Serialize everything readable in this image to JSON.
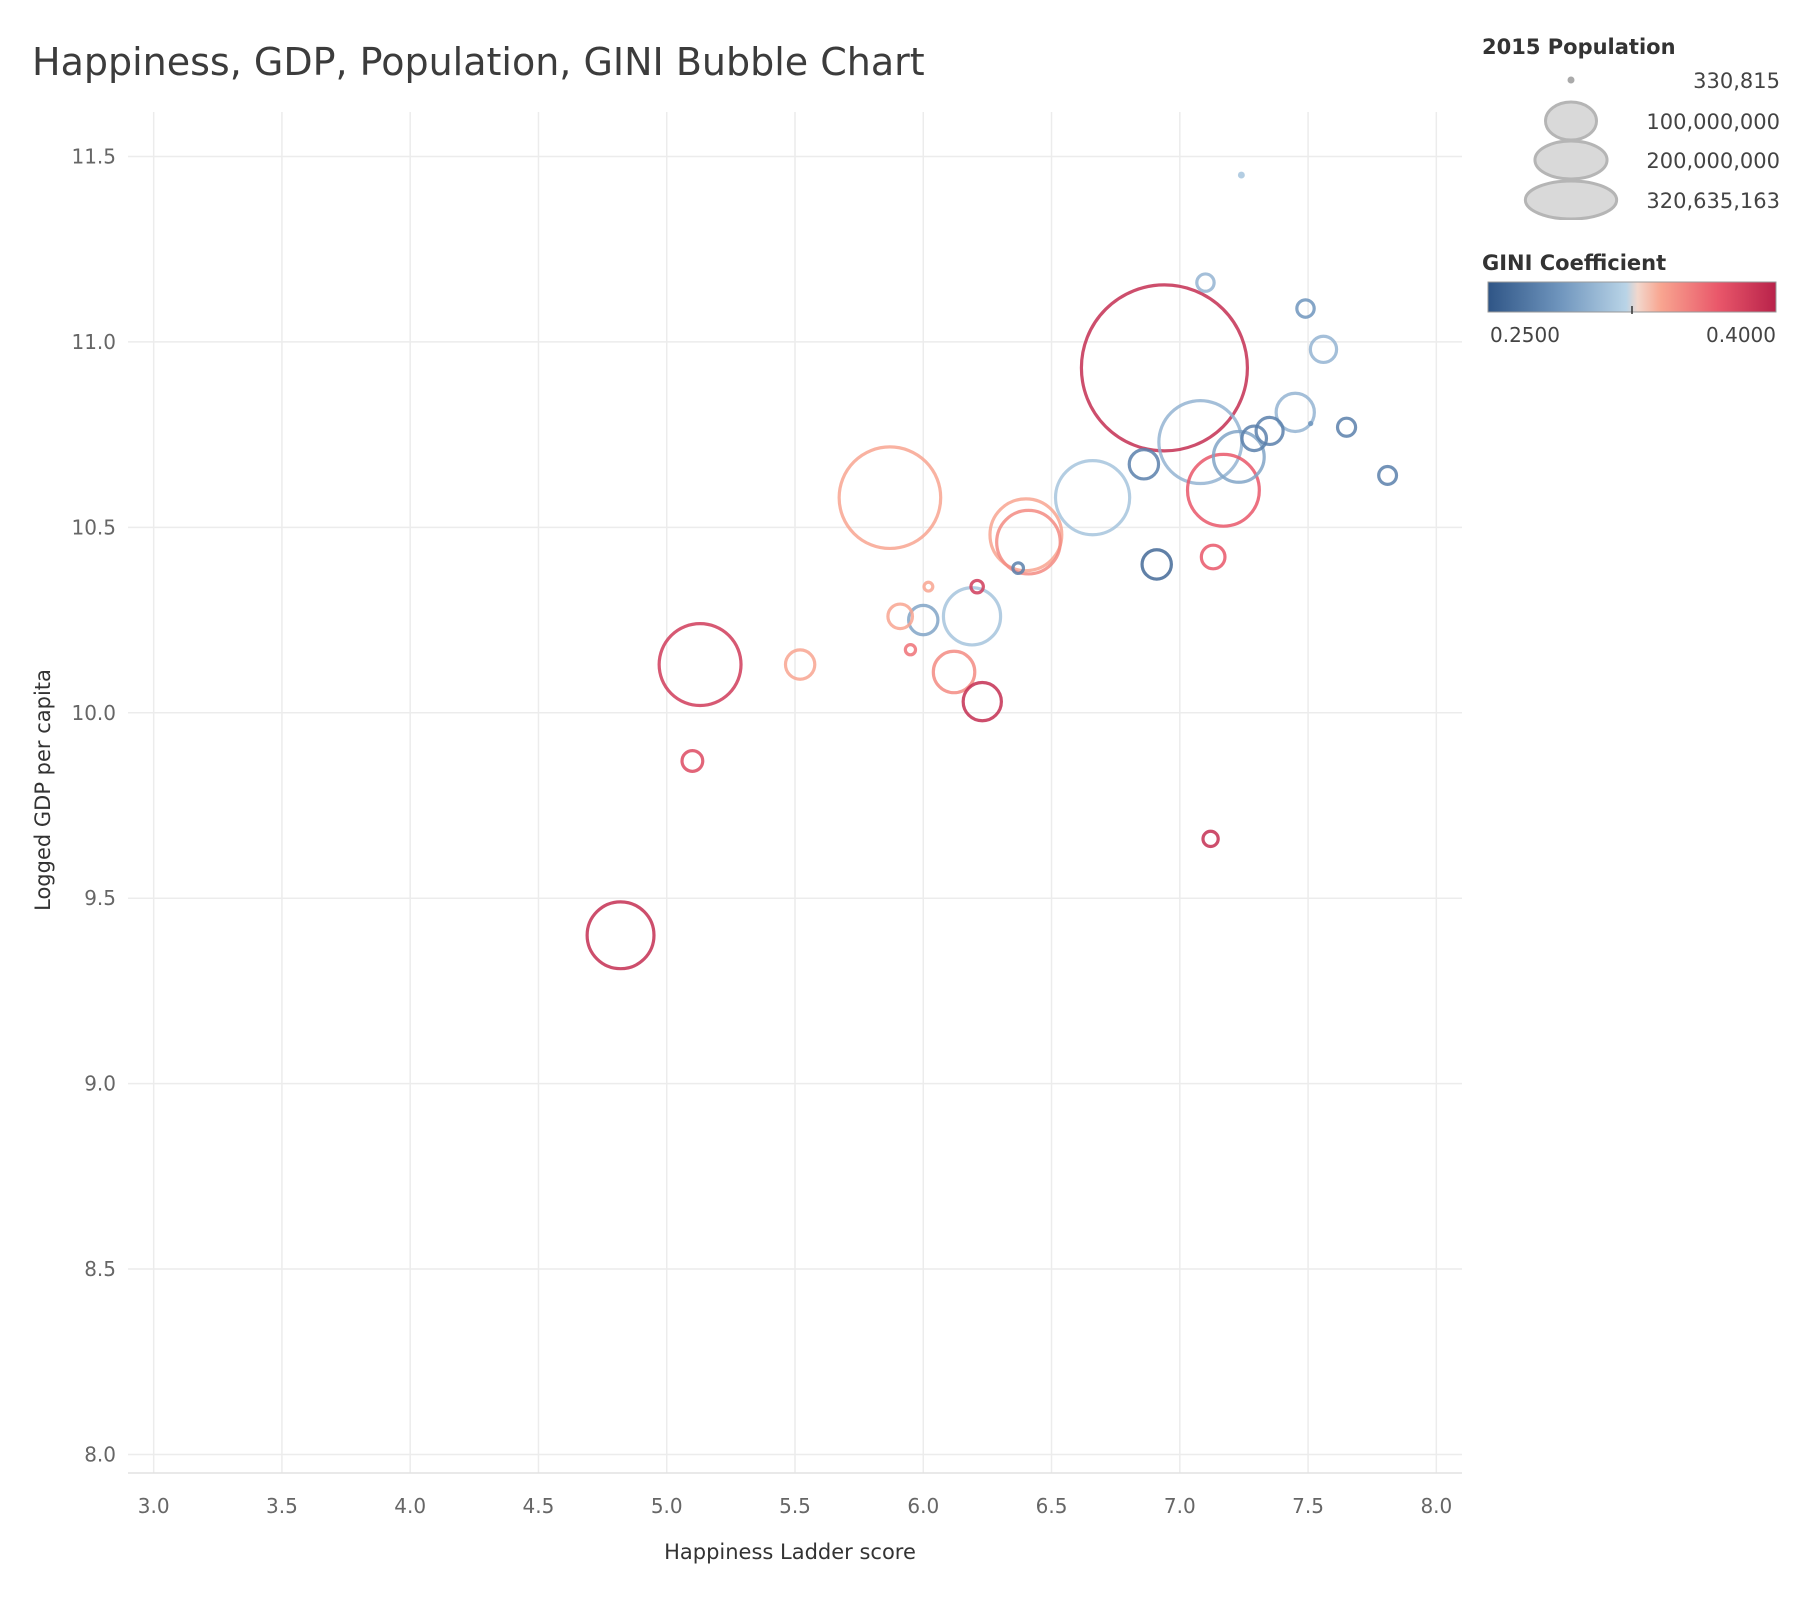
{
  "chart_data": {
    "type": "scatter",
    "title": "Happiness, GDP, Population, GINI Bubble Chart",
    "xlabel": "Happiness Ladder score",
    "ylabel": "Logged GDP per capita",
    "xlim": [
      2.9,
      8.1
    ],
    "ylim": [
      7.95,
      11.62
    ],
    "x_ticks": [
      "3.0",
      "3.5",
      "4.0",
      "4.5",
      "5.0",
      "5.5",
      "6.0",
      "6.5",
      "7.0",
      "7.5",
      "8.0"
    ],
    "y_ticks": [
      "8.0",
      "8.5",
      "9.0",
      "9.5",
      "10.0",
      "10.5",
      "11.0",
      "11.5"
    ],
    "grid": true,
    "size_legend": {
      "title": "2015 Population",
      "entries": [
        {
          "label": "330,815",
          "value": 330815
        },
        {
          "label": "100,000,000",
          "value": 100000000
        },
        {
          "label": "200,000,000",
          "value": 200000000
        },
        {
          "label": "320,635,163",
          "value": 320635163
        }
      ]
    },
    "color_legend": {
      "title": "GINI Coefficient",
      "min_label": "0.2500",
      "max_label": "0.4000",
      "min": 0.25,
      "max": 0.4
    },
    "points": [
      {
        "x": 6.94,
        "y": 10.93,
        "pop": 320635163,
        "gini": 0.41
      },
      {
        "x": 5.87,
        "y": 10.58,
        "pop": 120000000,
        "gini": 0.35
      },
      {
        "x": 7.08,
        "y": 10.73,
        "pop": 80000000,
        "gini": 0.3
      },
      {
        "x": 6.66,
        "y": 10.58,
        "pop": 64000000,
        "gini": 0.31
      },
      {
        "x": 5.13,
        "y": 10.13,
        "pop": 78000000,
        "gini": 0.4
      },
      {
        "x": 6.4,
        "y": 10.48,
        "pop": 60000000,
        "gini": 0.35
      },
      {
        "x": 6.41,
        "y": 10.46,
        "pop": 47000000,
        "gini": 0.36
      },
      {
        "x": 7.17,
        "y": 10.6,
        "pop": 60000000,
        "gini": 0.38
      },
      {
        "x": 4.82,
        "y": 9.4,
        "pop": 52000000,
        "gini": 0.41
      },
      {
        "x": 7.23,
        "y": 10.69,
        "pop": 30000000,
        "gini": 0.29
      },
      {
        "x": 6.19,
        "y": 10.26,
        "pop": 38000000,
        "gini": 0.31
      },
      {
        "x": 7.45,
        "y": 10.81,
        "pop": 17000000,
        "gini": 0.3
      },
      {
        "x": 6.12,
        "y": 10.11,
        "pop": 20000000,
        "gini": 0.36
      },
      {
        "x": 6.23,
        "y": 10.03,
        "pop": 17000000,
        "gini": 0.41
      },
      {
        "x": 6.86,
        "y": 10.67,
        "pop": 10000000,
        "gini": 0.27
      },
      {
        "x": 6.91,
        "y": 10.4,
        "pop": 10000000,
        "gini": 0.26
      },
      {
        "x": 7.35,
        "y": 10.76,
        "pop": 8500000,
        "gini": 0.27
      },
      {
        "x": 7.29,
        "y": 10.74,
        "pop": 7000000,
        "gini": 0.27
      },
      {
        "x": 5.52,
        "y": 10.13,
        "pop": 10000000,
        "gini": 0.35
      },
      {
        "x": 7.56,
        "y": 10.98,
        "pop": 8000000,
        "gini": 0.3
      },
      {
        "x": 6.0,
        "y": 10.25,
        "pop": 10000000,
        "gini": 0.29
      },
      {
        "x": 5.91,
        "y": 10.26,
        "pop": 7000000,
        "gini": 0.35
      },
      {
        "x": 7.13,
        "y": 10.42,
        "pop": 6500000,
        "gini": 0.38
      },
      {
        "x": 5.1,
        "y": 9.87,
        "pop": 5000000,
        "gini": 0.39
      },
      {
        "x": 7.65,
        "y": 10.77,
        "pop": 3800000,
        "gini": 0.27
      },
      {
        "x": 7.81,
        "y": 10.64,
        "pop": 3700000,
        "gini": 0.27
      },
      {
        "x": 7.49,
        "y": 11.09,
        "pop": 3500000,
        "gini": 0.28
      },
      {
        "x": 7.1,
        "y": 11.16,
        "pop": 3500000,
        "gini": 0.3
      },
      {
        "x": 7.12,
        "y": 9.66,
        "pop": 2700000,
        "gini": 0.41
      },
      {
        "x": 6.21,
        "y": 10.34,
        "pop": 1800000,
        "gini": 0.4
      },
      {
        "x": 5.95,
        "y": 10.17,
        "pop": 1200000,
        "gini": 0.37
      },
      {
        "x": 6.37,
        "y": 10.39,
        "pop": 1300000,
        "gini": 0.27
      },
      {
        "x": 6.02,
        "y": 10.34,
        "pop": 900000,
        "gini": 0.35
      },
      {
        "x": 7.51,
        "y": 10.78,
        "pop": 330815,
        "gini": 0.28
      },
      {
        "x": 7.24,
        "y": 11.45,
        "pop": 560000,
        "gini": 0.31
      }
    ]
  }
}
